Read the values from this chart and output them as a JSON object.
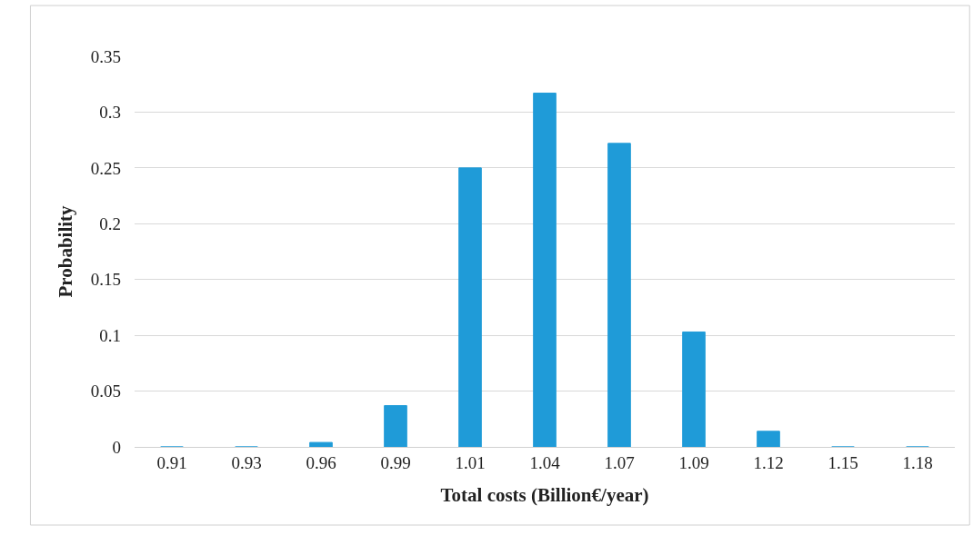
{
  "chart_data": {
    "type": "bar",
    "xlabel": "Total costs (Billion€/year)",
    "ylabel": "Probability",
    "categories": [
      "0.91",
      "0.93",
      "0.96",
      "0.99",
      "1.01",
      "1.04",
      "1.07",
      "1.09",
      "1.12",
      "1.15",
      "1.18"
    ],
    "values": [
      0,
      0,
      0.004,
      0.037,
      0.25,
      0.317,
      0.272,
      0.103,
      0.014,
      0,
      0
    ],
    "color": "#1f9bd8",
    "ylim": [
      0,
      0.35
    ],
    "yticks": [
      {
        "value": 0,
        "label": "0"
      },
      0.05,
      {
        "value": 0.1,
        "label": "0.1"
      },
      0.15,
      {
        "value": 0.2,
        "label": "0.2"
      },
      0.25,
      {
        "value": 0.3,
        "label": "0.3"
      },
      0.35
    ],
    "grid": "y"
  }
}
